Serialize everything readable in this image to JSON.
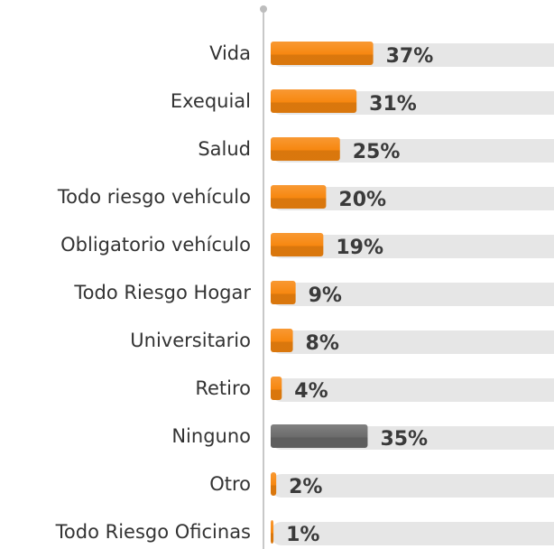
{
  "chart_data": {
    "type": "barh",
    "categories": [
      "Vida",
      "Exequial",
      "Salud",
      "Todo riesgo vehículo",
      "Obligatorio vehículo",
      "Todo Riesgo Hogar",
      "Universitario",
      "Retiro",
      "Ninguno",
      "Otro",
      "Todo Riesgo Oficinas"
    ],
    "values": [
      37,
      31,
      25,
      20,
      19,
      9,
      8,
      4,
      35,
      2,
      1
    ],
    "value_labels": [
      "37%",
      "31%",
      "25%",
      "20%",
      "19%",
      "9%",
      "8%",
      "4%",
      "35%",
      "2%",
      "1%"
    ],
    "colors": [
      "#f7870f",
      "#f7870f",
      "#f7870f",
      "#f7870f",
      "#f7870f",
      "#f7870f",
      "#f7870f",
      "#f7870f",
      "#6b6b6b",
      "#f7870f",
      "#f7870f"
    ],
    "xlim": [
      0,
      100
    ]
  }
}
